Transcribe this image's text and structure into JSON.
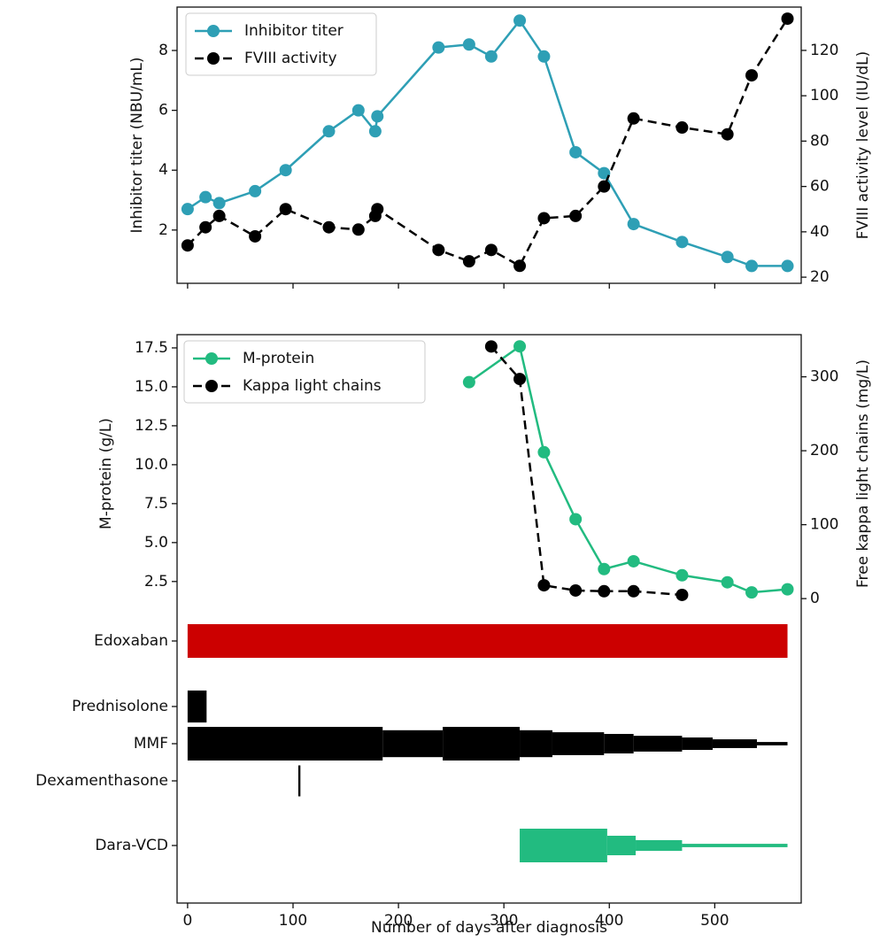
{
  "chart_data": [
    {
      "type": "line",
      "ylabel": "Inhibitor titer (NBU/mL)",
      "y2label": "FVIII activity level (IU/dL)",
      "xlim": [
        -10,
        582
      ],
      "xticks": [
        0,
        100,
        200,
        300,
        400,
        500
      ],
      "ylim": [
        0.22,
        9.45
      ],
      "yticks": [
        2,
        4,
        6,
        8
      ],
      "y2lim": [
        17.3,
        139.1
      ],
      "y2ticks": [
        20,
        40,
        60,
        80,
        100,
        120
      ],
      "legend": "upper left",
      "series": [
        {
          "name": "Inhibitor titer",
          "color": "#2e9fb5",
          "linestyle": "solid",
          "x": [
            0,
            17,
            30,
            64,
            93,
            134,
            162,
            178,
            180,
            238,
            267,
            288,
            315,
            338,
            368,
            395,
            423,
            469,
            512,
            535,
            569
          ],
          "values": [
            2.7,
            3.1,
            2.9,
            3.3,
            4.0,
            5.3,
            6.0,
            5.3,
            5.8,
            8.1,
            8.2,
            7.8,
            9.0,
            7.8,
            4.6,
            3.9,
            2.2,
            1.6,
            1.1,
            0.8,
            0.8
          ]
        },
        {
          "name": "FVIII activity",
          "color": "#000000",
          "linestyle": "dashed",
          "axis": "y2",
          "x": [
            0,
            17,
            30,
            64,
            93,
            134,
            162,
            178,
            180,
            238,
            267,
            288,
            315,
            338,
            368,
            395,
            423,
            469,
            512,
            535,
            569
          ],
          "values": [
            34,
            42,
            47,
            38,
            50,
            42,
            41,
            47,
            50,
            32,
            27,
            32,
            25,
            46,
            47,
            60,
            90,
            86,
            83,
            109,
            134
          ]
        }
      ]
    },
    {
      "type": "line",
      "ylabel": "M-protein (g/L)",
      "y2label": "Free kappa light chains (mg/L)",
      "xlim": [
        -10,
        582
      ],
      "ylim": [
        0.5,
        18.35
      ],
      "yticks": [
        2.5,
        {
          "value": 5,
          "label": "5.0"
        },
        7.5,
        {
          "value": 10,
          "label": "10.0"
        },
        12.5,
        {
          "value": 15,
          "label": "15.0"
        },
        17.5
      ],
      "y2lim": [
        -19,
        357
      ],
      "y2ticks": [
        0,
        100,
        200,
        300
      ],
      "legend": "upper left",
      "series": [
        {
          "name": "M-protein",
          "color": "#22bb80",
          "linestyle": "solid",
          "x": [
            267,
            315,
            338,
            368,
            395,
            423,
            469,
            512,
            535,
            569
          ],
          "values": [
            15.3,
            17.6,
            10.8,
            6.5,
            3.3,
            3.8,
            2.9,
            2.45,
            1.8,
            2.0
          ]
        },
        {
          "name": "Kappa light chains",
          "color": "#000000",
          "linestyle": "dashed",
          "axis": "y2",
          "x": [
            288,
            315,
            338,
            368,
            395,
            423,
            469
          ],
          "values": [
            341,
            297,
            18,
            11,
            10,
            10,
            5
          ]
        }
      ]
    },
    {
      "type": "timeline",
      "xlabel": "Number of days after diagnosis",
      "xlim": [
        -10,
        582
      ],
      "xticks": [
        0,
        100,
        200,
        300,
        400,
        500
      ],
      "categories": [
        "Edoxaban",
        "Prednisolone",
        "MMF",
        "Dexamenthasone",
        "Dara-VCD"
      ],
      "bars": [
        {
          "color": "#cc0000",
          "segments": [
            {
              "start": 0,
              "end": 569,
              "relative_dose": 1
            }
          ]
        },
        {
          "color": "#000000",
          "segments": [
            {
              "start": 0,
              "end": 18,
              "relative_dose": 0.95
            }
          ]
        },
        {
          "color": "#000000",
          "segments": [
            {
              "start": 0,
              "end": 185,
              "relative_dose": 1
            },
            {
              "start": 185,
              "end": 242,
              "relative_dose": 0.8
            },
            {
              "start": 242,
              "end": 315,
              "relative_dose": 1
            },
            {
              "start": 315,
              "end": 346,
              "relative_dose": 0.8
            },
            {
              "start": 346,
              "end": 395,
              "relative_dose": 0.68
            },
            {
              "start": 395,
              "end": 423,
              "relative_dose": 0.58
            },
            {
              "start": 423,
              "end": 469,
              "relative_dose": 0.47
            },
            {
              "start": 469,
              "end": 498,
              "relative_dose": 0.37
            },
            {
              "start": 498,
              "end": 540,
              "relative_dose": 0.26
            },
            {
              "start": 540,
              "end": 569,
              "relative_dose": 0.1
            }
          ]
        },
        {
          "color": "#000000",
          "segments": [
            {
              "start": 105,
              "end": 107,
              "relative_dose": 0.92
            }
          ]
        },
        {
          "color": "#22bb80",
          "segments": [
            {
              "start": 315,
              "end": 398,
              "relative_dose": 1
            },
            {
              "start": 398,
              "end": 425,
              "relative_dose": 0.58
            },
            {
              "start": 425,
              "end": 469,
              "relative_dose": 0.32
            },
            {
              "start": 469,
              "end": 569,
              "relative_dose": 0.1
            }
          ]
        }
      ]
    }
  ]
}
